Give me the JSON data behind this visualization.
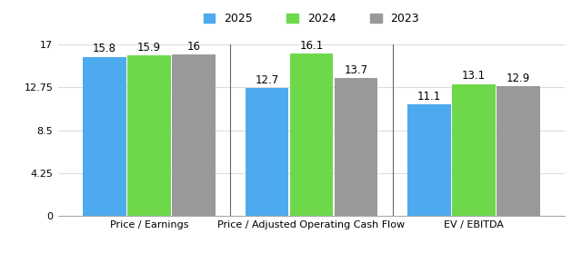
{
  "groups": [
    "Price / Earnings",
    "Price / Adjusted Operating Cash Flow",
    "EV / EBITDA"
  ],
  "series": [
    "2025",
    "2024",
    "2023"
  ],
  "values": [
    [
      15.8,
      15.9,
      16.0
    ],
    [
      12.7,
      16.1,
      13.7
    ],
    [
      11.1,
      13.1,
      12.9
    ]
  ],
  "bar_labels": [
    [
      "15.8",
      "15.9",
      "16"
    ],
    [
      "12.7",
      "16.1",
      "13.7"
    ],
    [
      "11.1",
      "13.1",
      "12.9"
    ]
  ],
  "colors": [
    "#4DAAEE",
    "#6DD94A",
    "#999999"
  ],
  "ylim": [
    0,
    17
  ],
  "yticks": [
    0,
    4.25,
    8.5,
    12.75,
    17
  ],
  "ytick_labels": [
    "0",
    "4.25",
    "8.5",
    "12.75",
    "17"
  ],
  "bar_width": 0.28,
  "background_color": "#FFFFFF",
  "grid_color": "#DDDDDD",
  "separator_color": "#666666",
  "legend_fontsize": 9,
  "label_fontsize": 8.5,
  "tick_fontsize": 8
}
